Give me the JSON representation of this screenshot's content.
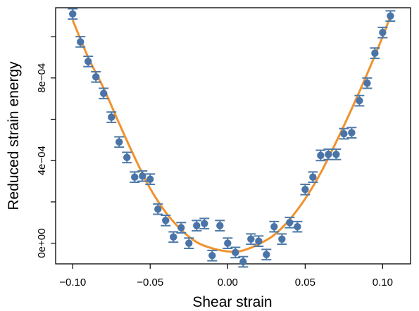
{
  "chart_data": {
    "type": "scatter",
    "title": "",
    "xlabel": "Shear strain",
    "ylabel": "Reduced strain energy",
    "xlim": [
      -0.111,
      0.118
    ],
    "ylim": [
      -0.0001,
      0.00114
    ],
    "xticks": [
      -0.1,
      -0.05,
      0.0,
      0.05,
      0.1
    ],
    "xtick_labels": [
      "−0.10",
      "−0.05",
      "0.00",
      "0.05",
      "0.10"
    ],
    "yticks": [
      0,
      0.0002,
      0.0004,
      0.0006,
      0.0008,
      0.001
    ],
    "ytick_labels": [
      "0e+00",
      "",
      "4e−04",
      "",
      "8e−04",
      ""
    ],
    "grid": false,
    "legend": "none",
    "colors": {
      "points": "#4a74a8",
      "error_bars": "#4d7aa8",
      "fit": "#f0922e"
    },
    "series": [
      {
        "kind": "points_with_error_bars",
        "error": 2.5e-05,
        "x": [
          -0.1,
          -0.095,
          -0.09,
          -0.085,
          -0.08,
          -0.075,
          -0.07,
          -0.065,
          -0.06,
          -0.055,
          -0.05,
          -0.045,
          -0.04,
          -0.035,
          -0.03,
          -0.025,
          -0.02,
          -0.015,
          -0.01,
          -0.005,
          0.0,
          0.005,
          0.01,
          0.015,
          0.02,
          0.025,
          0.03,
          0.035,
          0.04,
          0.045,
          0.05,
          0.055,
          0.06,
          0.065,
          0.07,
          0.075,
          0.08,
          0.085,
          0.09,
          0.095,
          0.1,
          0.105
        ],
        "y": [
          0.00111,
          0.000975,
          0.00088,
          0.000805,
          0.000725,
          0.00061,
          0.00049,
          0.000415,
          0.00032,
          0.000325,
          0.00031,
          0.000165,
          0.00011,
          3e-05,
          7.5e-05,
          0.0,
          8.5e-05,
          9.5e-05,
          -6e-05,
          8.5e-05,
          0.0,
          -4.5e-05,
          -9e-05,
          2e-05,
          1e-05,
          -5.5e-05,
          8e-05,
          2e-05,
          0.0001,
          8e-05,
          0.00026,
          0.00032,
          0.000425,
          0.00043,
          0.00043,
          0.00053,
          0.000535,
          0.00069,
          0.000775,
          0.00092,
          0.00102,
          0.0011
        ]
      },
      {
        "kind": "fit_curve",
        "x": [
          -0.1,
          -0.09,
          -0.08,
          -0.07,
          -0.06,
          -0.05,
          -0.04,
          -0.03,
          -0.02,
          -0.01,
          0.0,
          0.005,
          0.01,
          0.02,
          0.03,
          0.04,
          0.05,
          0.06,
          0.07,
          0.08,
          0.09,
          0.1,
          0.105
        ],
        "y": [
          0.00108,
          0.0009,
          0.00075,
          0.00058,
          0.000415,
          0.000265,
          0.00015,
          6.5e-05,
          5e-06,
          -2.5e-05,
          -4e-05,
          -4e-05,
          -3.5e-05,
          -5e-06,
          4e-05,
          0.000115,
          0.000215,
          0.00034,
          0.00049,
          0.00065,
          0.00082,
          0.001,
          0.0011
        ]
      }
    ]
  }
}
